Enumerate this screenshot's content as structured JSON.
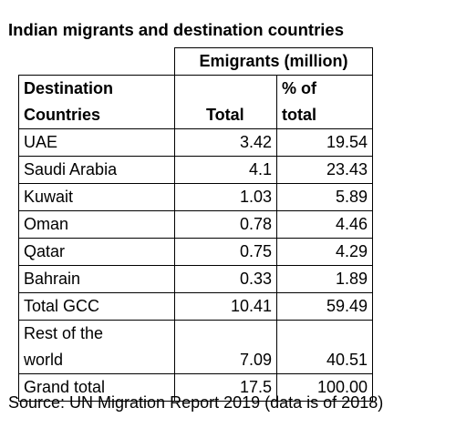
{
  "title": "Indian migrants and destination countries",
  "table": {
    "group_header": "Emigrants (million)",
    "col1_header_line1": "Destination",
    "col1_header_line2": "Countries",
    "col2_header": "Total",
    "col3_header_line1": "% of",
    "col3_header_line2": "total",
    "rows": [
      {
        "country": "UAE",
        "total": "3.42",
        "pct": "19.54"
      },
      {
        "country": "Saudi Arabia",
        "total": "4.1",
        "pct": "23.43"
      },
      {
        "country": "Kuwait",
        "total": "1.03",
        "pct": "5.89"
      },
      {
        "country": "Oman",
        "total": "0.78",
        "pct": "4.46"
      },
      {
        "country": "Qatar",
        "total": "0.75",
        "pct": "4.29"
      },
      {
        "country": "Bahrain",
        "total": "0.33",
        "pct": "1.89"
      },
      {
        "country": "Total GCC",
        "total": "10.41",
        "pct": "59.49"
      }
    ],
    "rest_line1": "Rest of the",
    "rest_line2": "world",
    "rest_total": "7.09",
    "rest_pct": "40.51",
    "grand_label": "Grand total",
    "grand_total": "17.5",
    "grand_pct": "100.00"
  },
  "source": "Source: UN Migration Report 2019 (data is of 2018)"
}
